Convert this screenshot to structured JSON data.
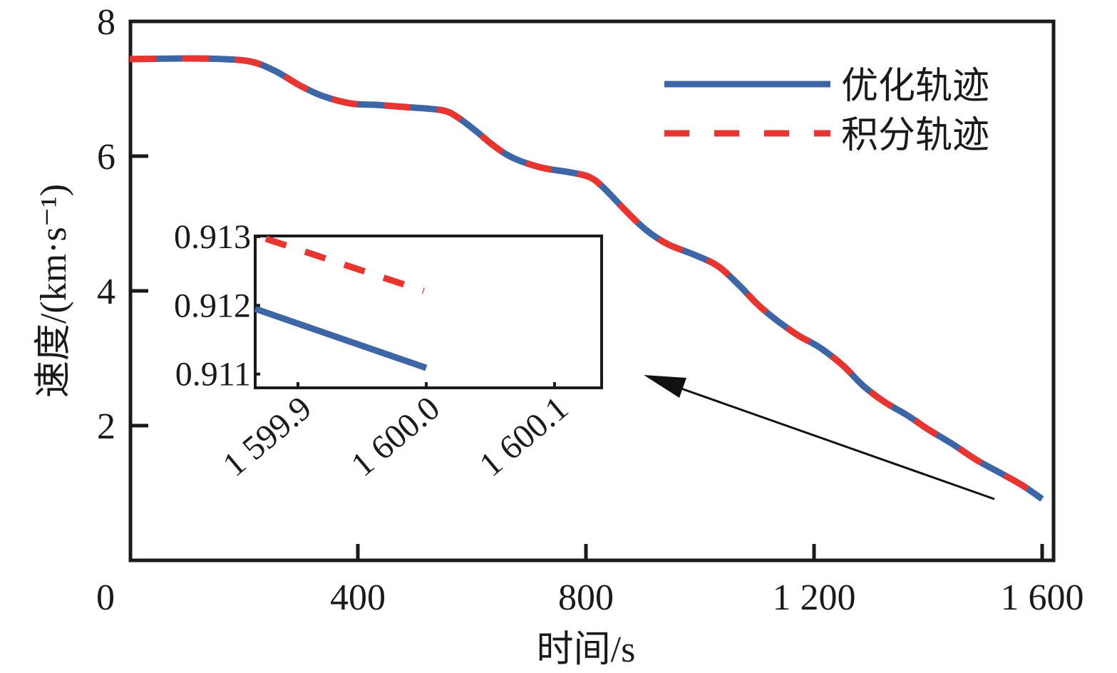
{
  "chart_data": {
    "type": "line",
    "xlabel": "时间/s",
    "ylabel": "速度/(km·s⁻¹)",
    "xlim": [
      0,
      1600
    ],
    "ylim": [
      0,
      8
    ],
    "x_ticks": [
      {
        "value": 0,
        "label": "0"
      },
      {
        "value": 400,
        "label": "400"
      },
      {
        "value": 800,
        "label": "800"
      },
      {
        "value": 1200,
        "label": "1 200"
      },
      {
        "value": 1600,
        "label": "1 600"
      }
    ],
    "y_ticks": [
      {
        "value": 2,
        "label": "2"
      },
      {
        "value": 4,
        "label": "4"
      },
      {
        "value": 6,
        "label": "6"
      },
      {
        "value": 8,
        "label": "8"
      }
    ],
    "grid": false,
    "legend_position": "top-right",
    "series": [
      {
        "name": "优化轨迹",
        "style": "solid",
        "color": "#3D66A6",
        "x": [
          0,
          98,
          164,
          214,
          256,
          298,
          339,
          389,
          435,
          481,
          548,
          576,
          606,
          639,
          673,
          722,
          772,
          806,
          831,
          872,
          906,
          944,
          989,
          1031,
          1069,
          1101,
          1135,
          1172,
          1210,
          1251,
          1285,
          1322,
          1364,
          1401,
          1444,
          1485,
          1526,
          1564,
          1600
        ],
        "y": [
          7.44,
          7.45,
          7.44,
          7.4,
          7.26,
          7.05,
          6.89,
          6.78,
          6.76,
          6.73,
          6.68,
          6.57,
          6.38,
          6.15,
          5.97,
          5.83,
          5.76,
          5.69,
          5.53,
          5.17,
          4.9,
          4.69,
          4.54,
          4.37,
          4.08,
          3.8,
          3.56,
          3.34,
          3.16,
          2.89,
          2.6,
          2.36,
          2.15,
          1.94,
          1.72,
          1.49,
          1.3,
          1.12,
          0.911
        ]
      },
      {
        "name": "积分轨迹",
        "style": "dashed",
        "color": "#E8352F",
        "x": [
          0,
          98,
          164,
          214,
          256,
          298,
          339,
          389,
          435,
          481,
          548,
          576,
          606,
          639,
          673,
          722,
          772,
          806,
          831,
          872,
          906,
          944,
          989,
          1031,
          1069,
          1101,
          1135,
          1172,
          1210,
          1251,
          1285,
          1322,
          1364,
          1401,
          1444,
          1485,
          1526,
          1564,
          1600
        ],
        "y": [
          7.44,
          7.45,
          7.44,
          7.4,
          7.26,
          7.05,
          6.89,
          6.78,
          6.76,
          6.73,
          6.68,
          6.57,
          6.38,
          6.15,
          5.97,
          5.83,
          5.76,
          5.69,
          5.53,
          5.17,
          4.9,
          4.69,
          4.54,
          4.37,
          4.08,
          3.8,
          3.56,
          3.34,
          3.16,
          2.89,
          2.6,
          2.36,
          2.15,
          1.94,
          1.72,
          1.49,
          1.3,
          1.12,
          0.912
        ]
      }
    ],
    "inset": {
      "xlim": [
        1599.8667,
        1600.1367
      ],
      "ylim": [
        0.9108,
        0.91301
      ],
      "x_ticks": [
        {
          "value": 1599.9,
          "label": "1 599.9"
        },
        {
          "value": 1600.0,
          "label": "1 600.0"
        },
        {
          "value": 1600.1,
          "label": "1 600.1"
        }
      ],
      "y_ticks": [
        {
          "value": 0.911,
          "label": "0.911"
        },
        {
          "value": 0.912,
          "label": "0.912"
        },
        {
          "value": 0.913,
          "label": "0.913"
        }
      ],
      "series": [
        {
          "name": "优化轨迹",
          "style": "solid",
          "color": "#3D66A6",
          "x": [
            1599.8667,
            1600.0
          ],
          "y": [
            0.91195,
            0.91109
          ]
        },
        {
          "name": "积分轨迹",
          "style": "dashed",
          "color": "#E8352F",
          "x": [
            1599.875,
            1599.998
          ],
          "y": [
            0.91297,
            0.91221
          ]
        }
      ]
    },
    "annotation": "arrow from curve end toward inset"
  }
}
